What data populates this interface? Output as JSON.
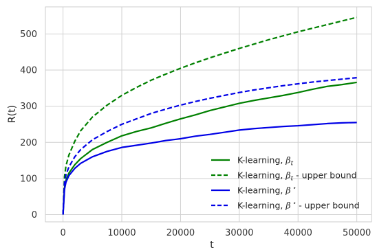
{
  "chart_data": {
    "type": "line",
    "title": "",
    "xlabel": "t",
    "ylabel": "R(t)",
    "xlim": [
      -3000,
      52500
    ],
    "ylim": [
      -20,
      575
    ],
    "xticks": [
      0,
      10000,
      20000,
      30000,
      40000,
      50000
    ],
    "yticks": [
      0,
      100,
      200,
      300,
      400,
      500
    ],
    "grid": true,
    "legend_position": "lower-right",
    "series": [
      {
        "name": "K-learning, β_t",
        "legend": {
          "main": "K-learning, ",
          "symbol": "β",
          "sub": "t",
          "suffix": ""
        },
        "color": "#008000",
        "style": "solid",
        "x": [
          0,
          250,
          500,
          1000,
          2000,
          3000,
          5000,
          7500,
          10000,
          12500,
          15000,
          17500,
          20000,
          22500,
          25000,
          27500,
          30000,
          32500,
          35000,
          37500,
          40000,
          42500,
          45000,
          47500,
          50000
        ],
        "y": [
          0,
          75,
          95,
          115,
          138,
          155,
          180,
          200,
          218,
          230,
          240,
          253,
          265,
          276,
          288,
          298,
          308,
          316,
          323,
          330,
          338,
          347,
          355,
          360,
          366
        ]
      },
      {
        "name": "K-learning, β_t - upper bound",
        "legend": {
          "main": "K-learning, ",
          "symbol": "β",
          "sub": "t",
          "suffix": " - upper bound"
        },
        "color": "#008000",
        "style": "dashed",
        "x": [
          0,
          250,
          500,
          1000,
          2000,
          3000,
          5000,
          7500,
          10000,
          12500,
          15000,
          17500,
          20000,
          22500,
          25000,
          27500,
          30000,
          32500,
          35000,
          37500,
          40000,
          42500,
          45000,
          47500,
          50000
        ],
        "y": [
          0,
          105,
          135,
          165,
          203,
          232,
          270,
          303,
          330,
          352,
          372,
          389,
          405,
          420,
          434,
          447,
          460,
          472,
          484,
          495,
          506,
          516,
          526,
          536,
          546
        ]
      },
      {
        "name": "K-learning, β*",
        "legend": {
          "main": "K-learning, ",
          "symbol": "β",
          "sub": "⋆",
          "suffix": ""
        },
        "color": "#0000e6",
        "style": "solid",
        "x": [
          0,
          250,
          500,
          1000,
          2000,
          3000,
          5000,
          7500,
          10000,
          12500,
          15000,
          17500,
          20000,
          22500,
          25000,
          27500,
          30000,
          32500,
          35000,
          37500,
          40000,
          42500,
          45000,
          47500,
          50000
        ],
        "y": [
          0,
          70,
          90,
          108,
          128,
          142,
          160,
          175,
          186,
          192,
          198,
          205,
          210,
          217,
          222,
          228,
          234,
          238,
          241,
          244,
          246,
          249,
          252,
          254,
          255
        ]
      },
      {
        "name": "K-learning, β* - upper bound",
        "legend": {
          "main": "K-learning, ",
          "symbol": "β",
          "sub": "⋆",
          "suffix": " - upper bound"
        },
        "color": "#0000e6",
        "style": "dashed",
        "x": [
          0,
          250,
          500,
          1000,
          2000,
          3000,
          5000,
          7500,
          10000,
          12500,
          15000,
          17500,
          20000,
          22500,
          25000,
          27500,
          30000,
          32500,
          35000,
          37500,
          40000,
          42500,
          45000,
          47500,
          50000
        ],
        "y": [
          0,
          88,
          110,
          132,
          160,
          180,
          207,
          230,
          250,
          265,
          280,
          292,
          303,
          313,
          322,
          330,
          338,
          345,
          351,
          357,
          362,
          367,
          371,
          375,
          379
        ]
      }
    ]
  }
}
